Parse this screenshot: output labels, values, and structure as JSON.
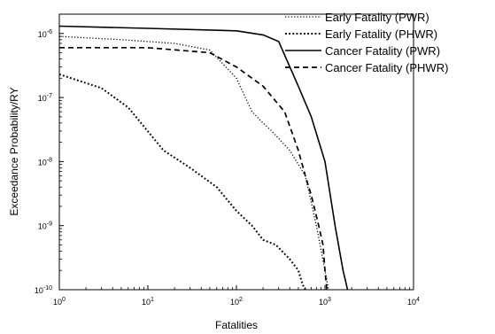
{
  "chart_data": {
    "type": "line",
    "xlabel": "Fatalities",
    "ylabel": "Exceedance Probability/RY",
    "xscale": "log",
    "yscale": "log",
    "xlim": [
      1,
      10000
    ],
    "ylim": [
      1e-10,
      2e-06
    ],
    "x_ticks": [
      {
        "value": 1,
        "base": "10",
        "exp": "0"
      },
      {
        "value": 10,
        "base": "10",
        "exp": "1"
      },
      {
        "value": 100,
        "base": "10",
        "exp": "2"
      },
      {
        "value": 1000,
        "base": "10",
        "exp": "3"
      },
      {
        "value": 10000,
        "base": "10",
        "exp": "4"
      }
    ],
    "y_ticks": [
      {
        "value": 1e-10,
        "base": "10",
        "exp": "-10"
      },
      {
        "value": 1e-09,
        "base": "10",
        "exp": "-9"
      },
      {
        "value": 1e-08,
        "base": "10",
        "exp": "-8"
      },
      {
        "value": 1e-07,
        "base": "10",
        "exp": "-7"
      },
      {
        "value": 1e-06,
        "base": "10",
        "exp": "-6"
      }
    ],
    "legend_position": "top-right",
    "grid": false,
    "series": [
      {
        "name": "Early Fatality (PWR)",
        "style": "dotted-fine",
        "x": [
          1,
          5,
          20,
          50,
          100,
          150,
          200,
          250,
          400,
          600,
          800,
          1000,
          1100
        ],
        "y": [
          9e-07,
          8e-07,
          7e-07,
          5.5e-07,
          2e-07,
          6e-08,
          4e-08,
          3e-08,
          1.5e-08,
          6e-09,
          1e-09,
          2e-10,
          1e-10
        ]
      },
      {
        "name": "Early Fatality (PHWR)",
        "style": "dotted-coarse",
        "x": [
          1,
          3,
          6,
          15,
          30,
          60,
          100,
          150,
          200,
          280,
          400,
          500,
          560,
          600
        ],
        "y": [
          2.3e-07,
          1.4e-07,
          7e-08,
          1.5e-08,
          8e-09,
          4e-09,
          1.7e-09,
          1e-09,
          6e-10,
          5e-10,
          3e-10,
          2e-10,
          1.2e-10,
          1e-10
        ]
      },
      {
        "name": "Cancer Fatality (PWR)",
        "style": "solid",
        "x": [
          1,
          10,
          100,
          200,
          300,
          500,
          700,
          1000,
          1300,
          1600,
          1800
        ],
        "y": [
          1.3e-06,
          1.2e-06,
          1.1e-06,
          9.5e-07,
          7.5e-07,
          1.5e-07,
          5e-08,
          1e-08,
          1e-09,
          2e-10,
          1e-10
        ]
      },
      {
        "name": "Cancer Fatality (PHWR)",
        "style": "dashed",
        "x": [
          1,
          10,
          50,
          100,
          200,
          350,
          500,
          600,
          700,
          850,
          950,
          1000,
          1050
        ],
        "y": [
          6e-07,
          6e-07,
          5e-07,
          3e-07,
          1.5e-07,
          6e-08,
          1.5e-08,
          6e-09,
          3e-09,
          1e-09,
          5e-10,
          2e-10,
          1e-10
        ]
      }
    ]
  }
}
